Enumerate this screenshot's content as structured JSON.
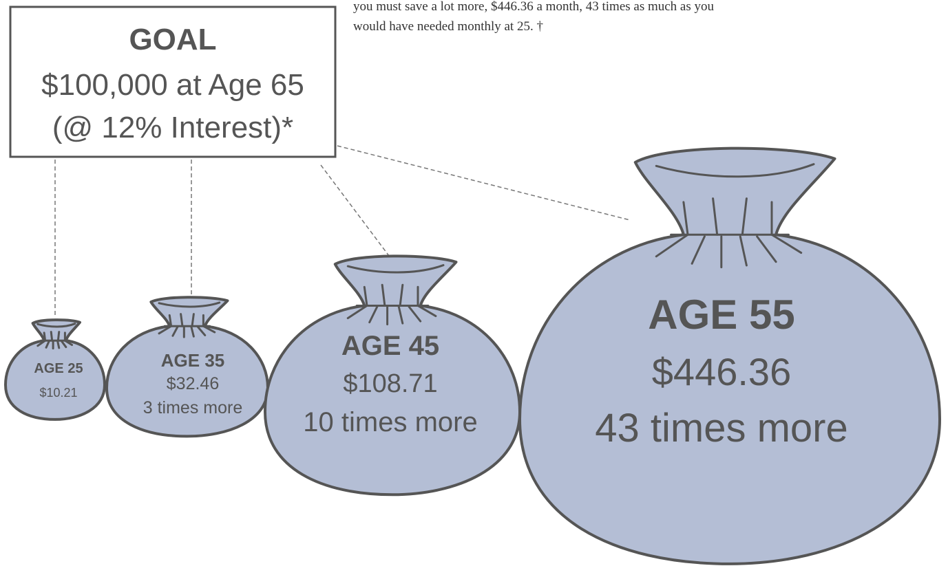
{
  "intro": {
    "lines": [
      "you must save a lot more, $446.36 a month, 43 times as much as you",
      "would have needed monthly at 25. †"
    ]
  },
  "goal": {
    "title": "GOAL",
    "amount": "$100,000 at Age 65",
    "rate": "(@ 12% Interest)*"
  },
  "bags": [
    {
      "age": "AGE 25",
      "monthly": "$10.21"
    },
    {
      "age": "AGE 35",
      "monthly": "$32.46",
      "multiple": "3 times more"
    },
    {
      "age": "AGE 45",
      "monthly": "$108.71",
      "multiple": "10 times more"
    },
    {
      "age": "AGE 55",
      "monthly": "$446.36",
      "multiple": "43 times more"
    }
  ]
}
